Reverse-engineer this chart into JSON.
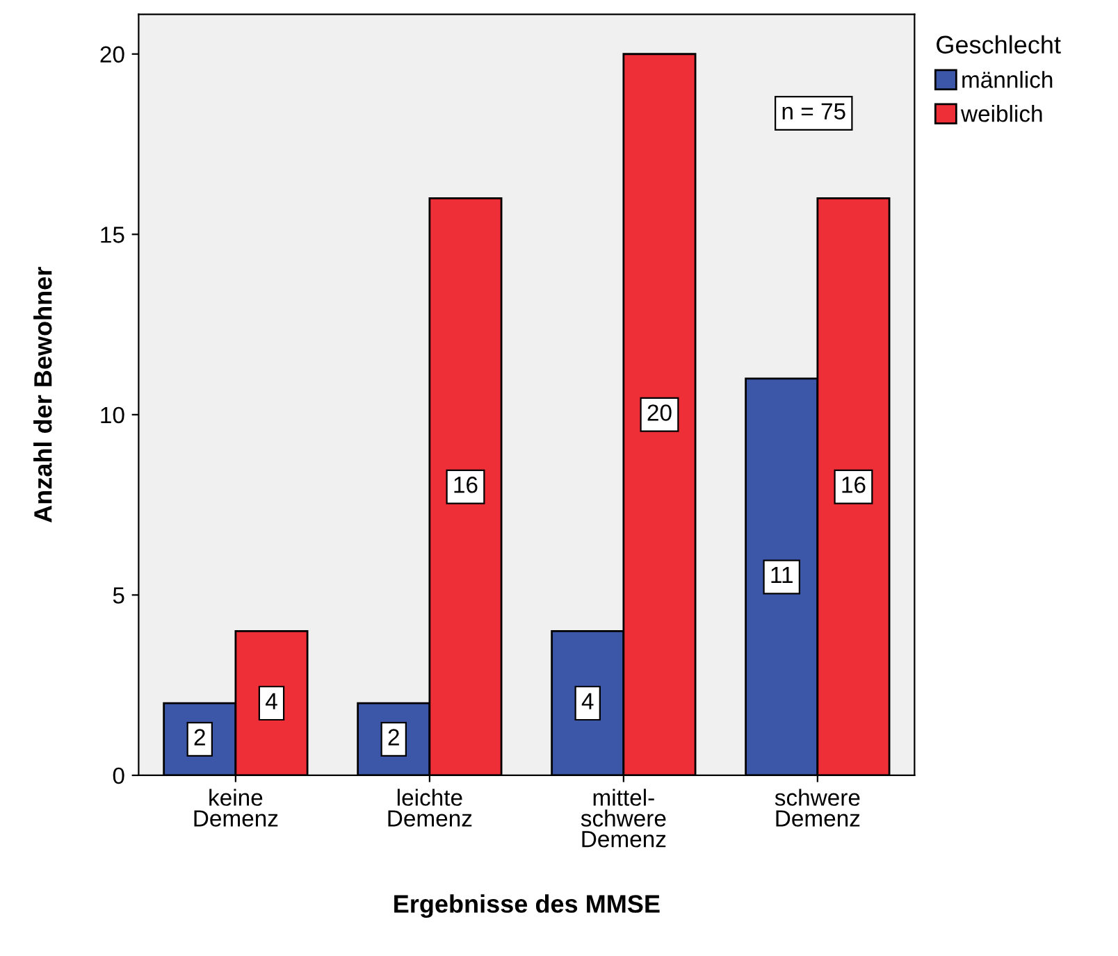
{
  "chart_data": {
    "type": "bar",
    "xlabel": "Ergebnisse des MMSE",
    "ylabel": "Anzahl der Bewohner",
    "legend_title": "Geschlecht",
    "categories": [
      "keine\nDemenz",
      "leichte\nDemenz",
      "mittel-\nschwere\nDemenz",
      "schwere\nDemenz"
    ],
    "series": [
      {
        "name": "männlich",
        "color": "#3c56a8",
        "values": [
          2,
          2,
          4,
          11
        ]
      },
      {
        "name": "weiblich",
        "color": "#ef2f37",
        "values": [
          4,
          16,
          20,
          16
        ]
      }
    ],
    "ylim": [
      0,
      21.1
    ],
    "yticks": [
      0,
      5,
      10,
      15,
      20
    ],
    "grid": false,
    "legend": "top right",
    "data_labels": true,
    "annotations": [
      "n = 75"
    ]
  }
}
